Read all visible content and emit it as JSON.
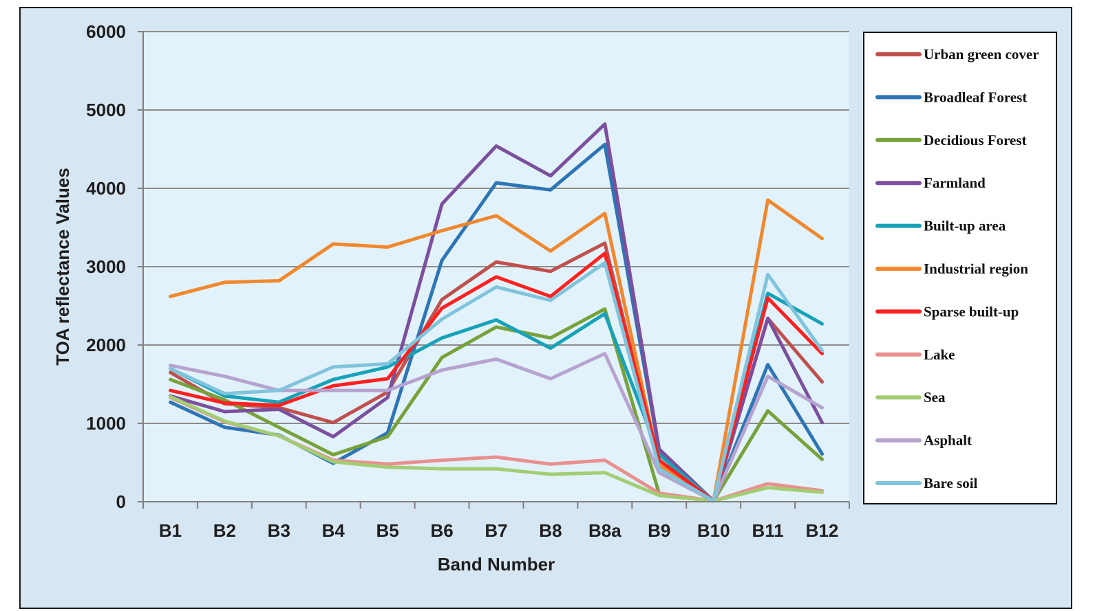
{
  "chart_data": {
    "type": "line",
    "xlabel": "Band Number",
    "ylabel": "TOA reflectance Values",
    "ylim": [
      0,
      6000
    ],
    "yticks": [
      0,
      1000,
      2000,
      3000,
      4000,
      5000,
      6000
    ],
    "grid": true,
    "legend_position": "right",
    "categories": [
      "B1",
      "B2",
      "B3",
      "B4",
      "B5",
      "B6",
      "B7",
      "B8",
      "B8a",
      "B9",
      "B10",
      "B11",
      "B12"
    ],
    "series": [
      {
        "name": "Urban green cover",
        "color": "#c0504d",
        "values": [
          1650,
          1250,
          1200,
          1010,
          1400,
          2580,
          3060,
          2940,
          3300,
          470,
          10,
          2340,
          1530
        ]
      },
      {
        "name": "Broadleaf Forest",
        "color": "#2e75b6",
        "values": [
          1270,
          950,
          850,
          490,
          880,
          3080,
          4070,
          3980,
          4560,
          650,
          10,
          1750,
          610
        ]
      },
      {
        "name": "Decidious Forest",
        "color": "#77a23b",
        "values": [
          1560,
          1300,
          950,
          600,
          830,
          1840,
          2230,
          2090,
          2460,
          100,
          10,
          1160,
          540
        ]
      },
      {
        "name": "Farmland",
        "color": "#7b4f9d",
        "values": [
          1350,
          1150,
          1180,
          830,
          1330,
          3800,
          4540,
          4160,
          4820,
          670,
          10,
          2340,
          1010
        ]
      },
      {
        "name": "Built-up area",
        "color": "#17a2b8",
        "values": [
          1700,
          1350,
          1270,
          1560,
          1720,
          2090,
          2320,
          1960,
          2400,
          600,
          10,
          2660,
          2270
        ]
      },
      {
        "name": "Industrial region",
        "color": "#f0882f",
        "values": [
          2620,
          2800,
          2820,
          3290,
          3250,
          3460,
          3650,
          3200,
          3680,
          470,
          10,
          3850,
          3360
        ]
      },
      {
        "name": "Sparse built-up",
        "color": "#ff2020",
        "values": [
          1420,
          1260,
          1230,
          1480,
          1570,
          2470,
          2870,
          2620,
          3170,
          530,
          10,
          2600,
          1890
        ]
      },
      {
        "name": "Lake",
        "color": "#e9908f",
        "values": [
          1330,
          1020,
          840,
          530,
          480,
          530,
          570,
          480,
          530,
          110,
          10,
          230,
          140
        ]
      },
      {
        "name": "Sea",
        "color": "#a3cd73",
        "values": [
          1340,
          1030,
          840,
          510,
          440,
          420,
          420,
          350,
          370,
          80,
          10,
          180,
          120
        ]
      },
      {
        "name": "Asphalt",
        "color": "#b6a3cf",
        "values": [
          1740,
          1600,
          1420,
          1420,
          1420,
          1680,
          1820,
          1570,
          1890,
          370,
          10,
          1600,
          1200
        ]
      },
      {
        "name": "Bare soil",
        "color": "#80c4dc",
        "values": [
          1700,
          1380,
          1420,
          1720,
          1760,
          2330,
          2740,
          2570,
          3050,
          420,
          10,
          2900,
          1930
        ]
      }
    ]
  }
}
